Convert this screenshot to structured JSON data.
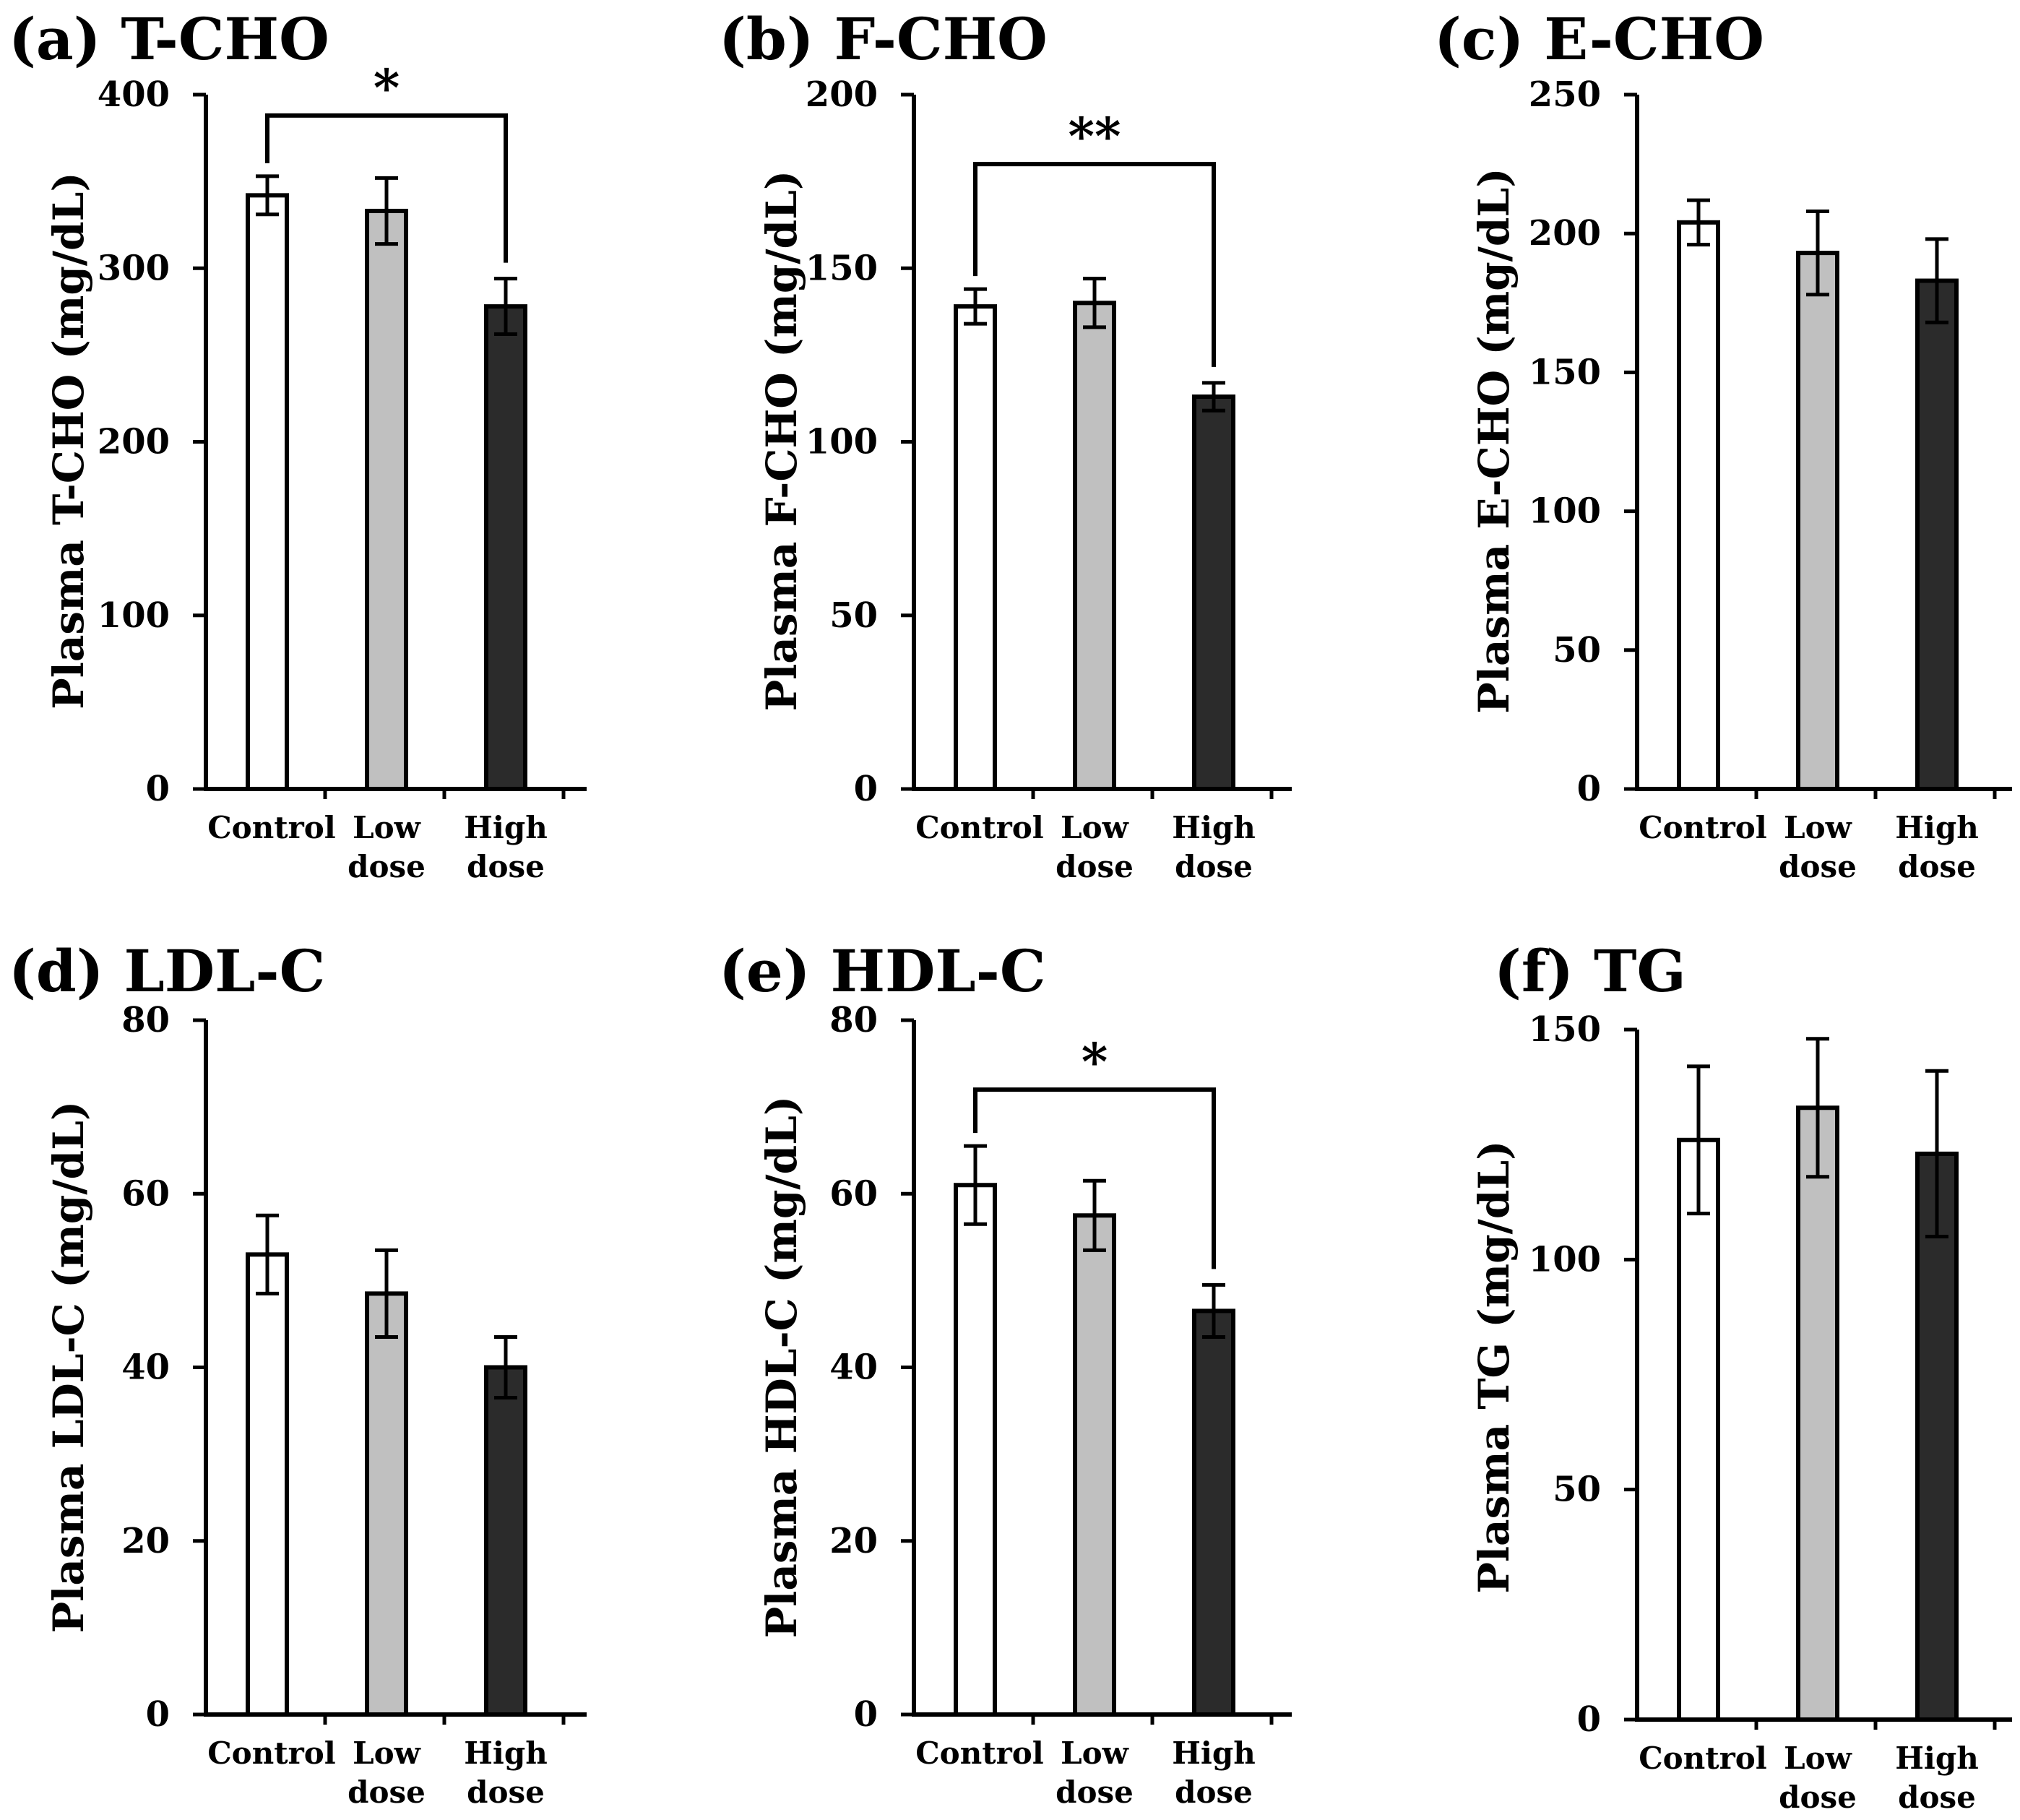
{
  "figure": {
    "bar_colors": [
      "#ffffff",
      "#c0c0c0",
      "#2b2b2b"
    ],
    "edge_color": "#000000"
  },
  "chart_data": [
    {
      "type": "bar",
      "title": "(a) T-CHO",
      "ylabel": "Plasma T-CHO (mg/dL)",
      "categories": [
        "Control",
        "Low\ndose",
        "High\ndose"
      ],
      "values": [
        342,
        333,
        278
      ],
      "errors": [
        11,
        19,
        16
      ],
      "ylim": [
        0,
        400
      ],
      "yticks": [
        0,
        100,
        200,
        300,
        400
      ],
      "significance": [
        {
          "from": 0,
          "to": 2,
          "label": "*",
          "y": 388
        }
      ]
    },
    {
      "type": "bar",
      "title": "(b) F-CHO",
      "ylabel": "Plasma F-CHO (mg/dL)",
      "categories": [
        "Control",
        "Low\ndose",
        "High\ndose"
      ],
      "values": [
        139,
        140,
        113
      ],
      "errors": [
        5,
        7,
        4
      ],
      "ylim": [
        0,
        200
      ],
      "yticks": [
        0,
        50,
        100,
        150,
        200
      ],
      "significance": [
        {
          "from": 0,
          "to": 2,
          "label": "**",
          "y": 180
        }
      ]
    },
    {
      "type": "bar",
      "title": "(c) E-CHO",
      "ylabel": "Plasma E-CHO (mg/dL)",
      "categories": [
        "Control",
        "Low\ndose",
        "High\ndose"
      ],
      "values": [
        204,
        193,
        183
      ],
      "errors": [
        8,
        15,
        15
      ],
      "ylim": [
        0,
        250
      ],
      "yticks": [
        0,
        50,
        100,
        150,
        200,
        250
      ],
      "significance": []
    },
    {
      "type": "bar",
      "title": "(d) LDL-C",
      "ylabel": "Plasma LDL-C (mg/dL)",
      "categories": [
        "Control",
        "Low\ndose",
        "High\ndose"
      ],
      "values": [
        53,
        48.5,
        40
      ],
      "errors": [
        4.5,
        5,
        3.5
      ],
      "ylim": [
        0,
        80
      ],
      "yticks": [
        0,
        20,
        40,
        60,
        80
      ],
      "significance": []
    },
    {
      "type": "bar",
      "title": "(e) HDL-C",
      "ylabel": "Plasma HDL-C (mg/dL)",
      "categories": [
        "Control",
        "Low\ndose",
        "High\ndose"
      ],
      "values": [
        61,
        57.5,
        46.5
      ],
      "errors": [
        4.5,
        4,
        3
      ],
      "ylim": [
        0,
        80
      ],
      "yticks": [
        0,
        20,
        40,
        60,
        80
      ],
      "significance": [
        {
          "from": 0,
          "to": 2,
          "label": "*",
          "y": 72
        }
      ]
    },
    {
      "type": "bar",
      "title": "(f) TG",
      "ylabel": "Plasma TG (mg/dL)",
      "categories": [
        "Control",
        "Low\ndose",
        "High\ndose"
      ],
      "values": [
        126,
        133,
        123
      ],
      "errors": [
        16,
        15,
        18
      ],
      "ylim": [
        0,
        150
      ],
      "yticks": [
        0,
        50,
        100,
        150
      ],
      "significance": []
    }
  ]
}
